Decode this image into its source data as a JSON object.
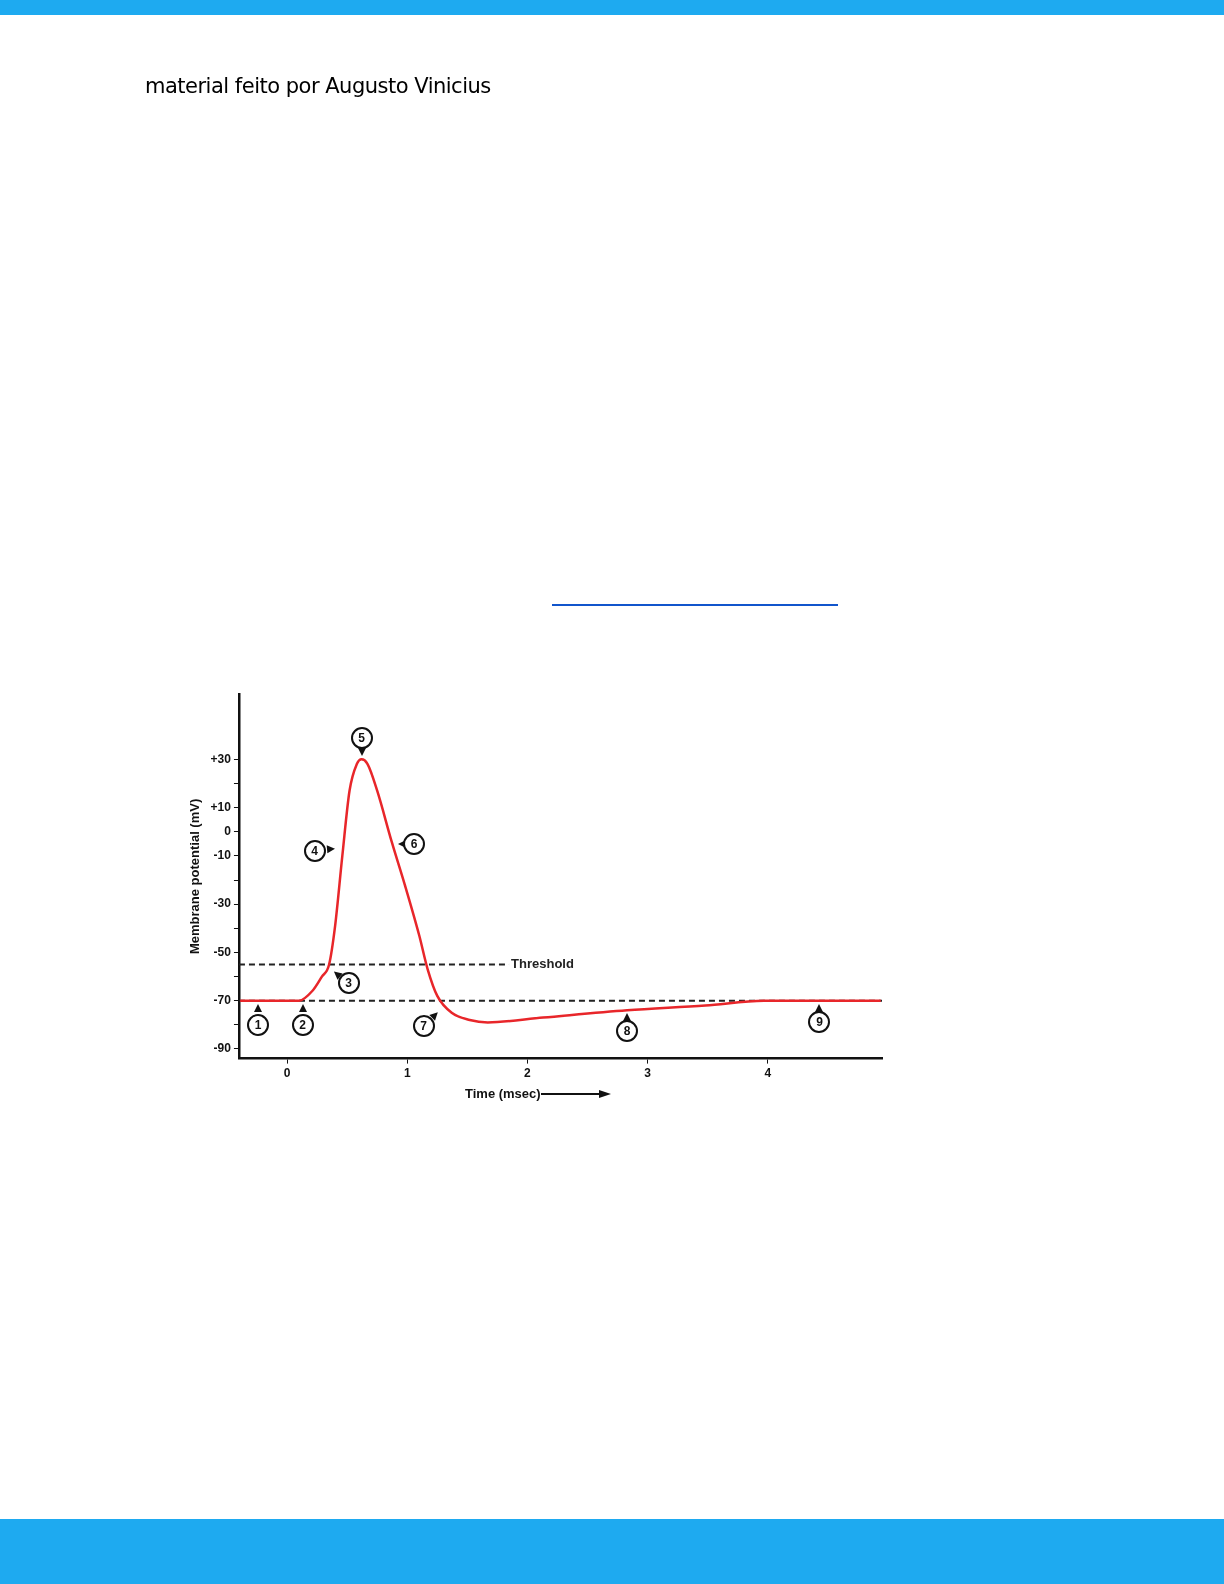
{
  "chart_data": {
    "type": "line",
    "title": "material feito por Augusto Vinicius",
    "xlabel": "Time (msec)",
    "ylabel": "Membrane potential (mV)",
    "x": [
      -0.39,
      0.1,
      0.21,
      0.29,
      0.35,
      0.4,
      0.46,
      0.52,
      0.58,
      0.62,
      0.67,
      0.75,
      0.87,
      0.98,
      1.1,
      1.17,
      1.25,
      1.37,
      1.52,
      1.67,
      2.13,
      2.83,
      3.48,
      3.98,
      4.94
    ],
    "series": [
      {
        "color": "#e8262a",
        "values": [
          -70,
          -70,
          -66,
          -60,
          -55,
          -39,
          -10,
          17,
          28,
          30,
          28,
          17,
          -4,
          -22,
          -43,
          -57,
          -68,
          -75,
          -78,
          -79,
          -77,
          -74,
          -72,
          -70,
          -70
        ]
      }
    ],
    "xlim": [
      -0.4,
      4.95
    ],
    "xticks": [
      0,
      1,
      2,
      3,
      4
    ],
    "ylim": [
      -94,
      57
    ],
    "yticks": [
      {
        "value": -90,
        "label": "-90"
      },
      {
        "value": -80,
        "label": null
      },
      {
        "value": -70,
        "label": "-70"
      },
      {
        "value": -60,
        "label": null
      },
      {
        "value": -50,
        "label": "-50"
      },
      {
        "value": -40,
        "label": null
      },
      {
        "value": -30,
        "label": "-30"
      },
      {
        "value": -20,
        "label": null
      },
      {
        "value": -10,
        "label": "-10"
      },
      {
        "value": 0,
        "label": "0"
      },
      {
        "value": 10,
        "label": "+10"
      },
      {
        "value": 20,
        "label": null
      },
      {
        "value": 30,
        "label": "+30"
      }
    ],
    "ref_lines": [
      {
        "axis": "y",
        "value": -55,
        "label": "Threshold",
        "color": "#222222",
        "line_style": "dashed"
      },
      {
        "axis": "y",
        "value": -70,
        "color": "#222222",
        "line_style": "dashed"
      }
    ],
    "annotations": [
      {
        "text": "1",
        "x": -0.24,
        "y": -70
      },
      {
        "text": "2",
        "x": 0.13,
        "y": -70
      },
      {
        "text": "3",
        "x": 0.37,
        "y": -57
      },
      {
        "text": "4",
        "x": 0.42,
        "y": -7
      },
      {
        "text": "5",
        "x": 0.62,
        "y": 30
      },
      {
        "text": "6",
        "x": 0.9,
        "y": -5
      },
      {
        "text": "7",
        "x": 1.27,
        "y": -74
      },
      {
        "text": "8",
        "x": 2.83,
        "y": -74
      },
      {
        "text": "9",
        "x": 4.43,
        "y": -70
      }
    ],
    "grid": false,
    "legend": false,
    "marker": "none",
    "line_style": "solid"
  }
}
